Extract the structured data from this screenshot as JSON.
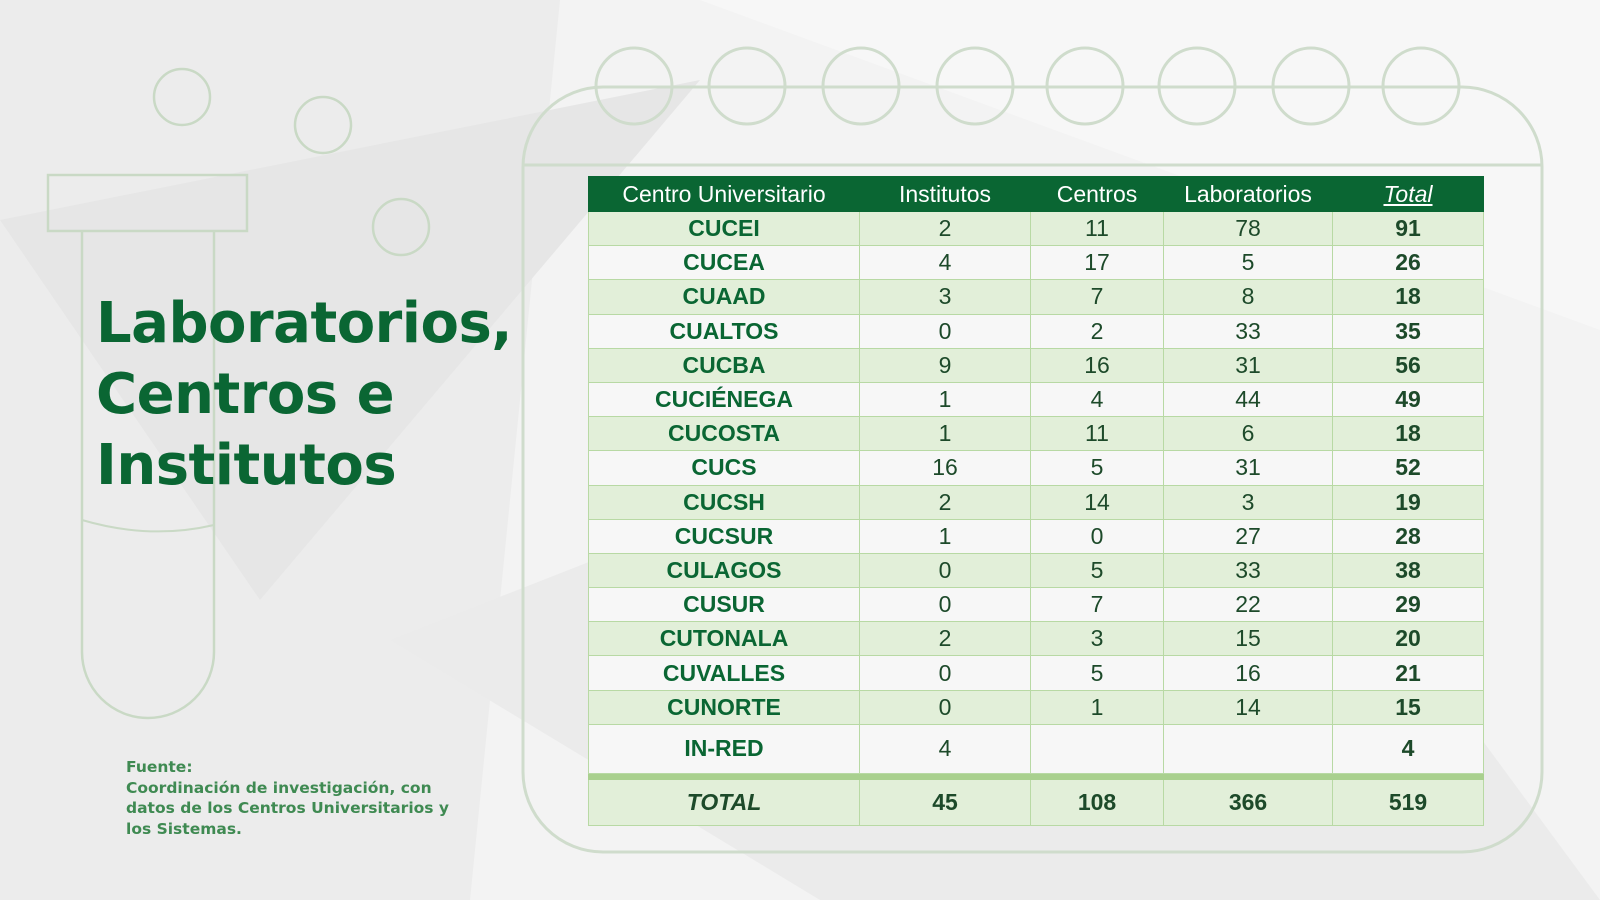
{
  "title_lines": [
    "Laboratorios,",
    "Centros e",
    "Institutos"
  ],
  "source": {
    "label": "Fuente:",
    "lines": [
      "Coordinación de investigación, con",
      "datos de los Centros Universitarios y",
      "los Sistemas."
    ]
  },
  "table": {
    "header": [
      "Centro Universitario",
      "Institutos",
      "Centros",
      "Laboratorios",
      "Total"
    ],
    "rows": [
      [
        "CUCEI",
        2,
        11,
        78,
        91
      ],
      [
        "CUCEA",
        4,
        17,
        5,
        26
      ],
      [
        "CUAAD",
        3,
        7,
        8,
        18
      ],
      [
        "CUALTOS",
        0,
        2,
        33,
        35
      ],
      [
        "CUCBA",
        9,
        16,
        31,
        56
      ],
      [
        "CUCIÉNEGA",
        1,
        4,
        44,
        49
      ],
      [
        "CUCOSTA",
        1,
        11,
        6,
        18
      ],
      [
        "CUCS",
        16,
        5,
        31,
        52
      ],
      [
        "CUCSH",
        2,
        14,
        3,
        19
      ],
      [
        "CUCSUR",
        1,
        0,
        27,
        28
      ],
      [
        "CULAGOS",
        0,
        5,
        33,
        38
      ],
      [
        "CUSUR",
        0,
        7,
        22,
        29
      ],
      [
        "CUTONALA",
        2,
        3,
        15,
        20
      ],
      [
        "CUVALLES",
        0,
        5,
        16,
        21
      ],
      [
        "CUNORTE",
        0,
        1,
        14,
        15
      ],
      [
        "IN-RED",
        4,
        null,
        null,
        4
      ]
    ],
    "total": [
      "TOTAL",
      45,
      108,
      366,
      519
    ]
  }
}
